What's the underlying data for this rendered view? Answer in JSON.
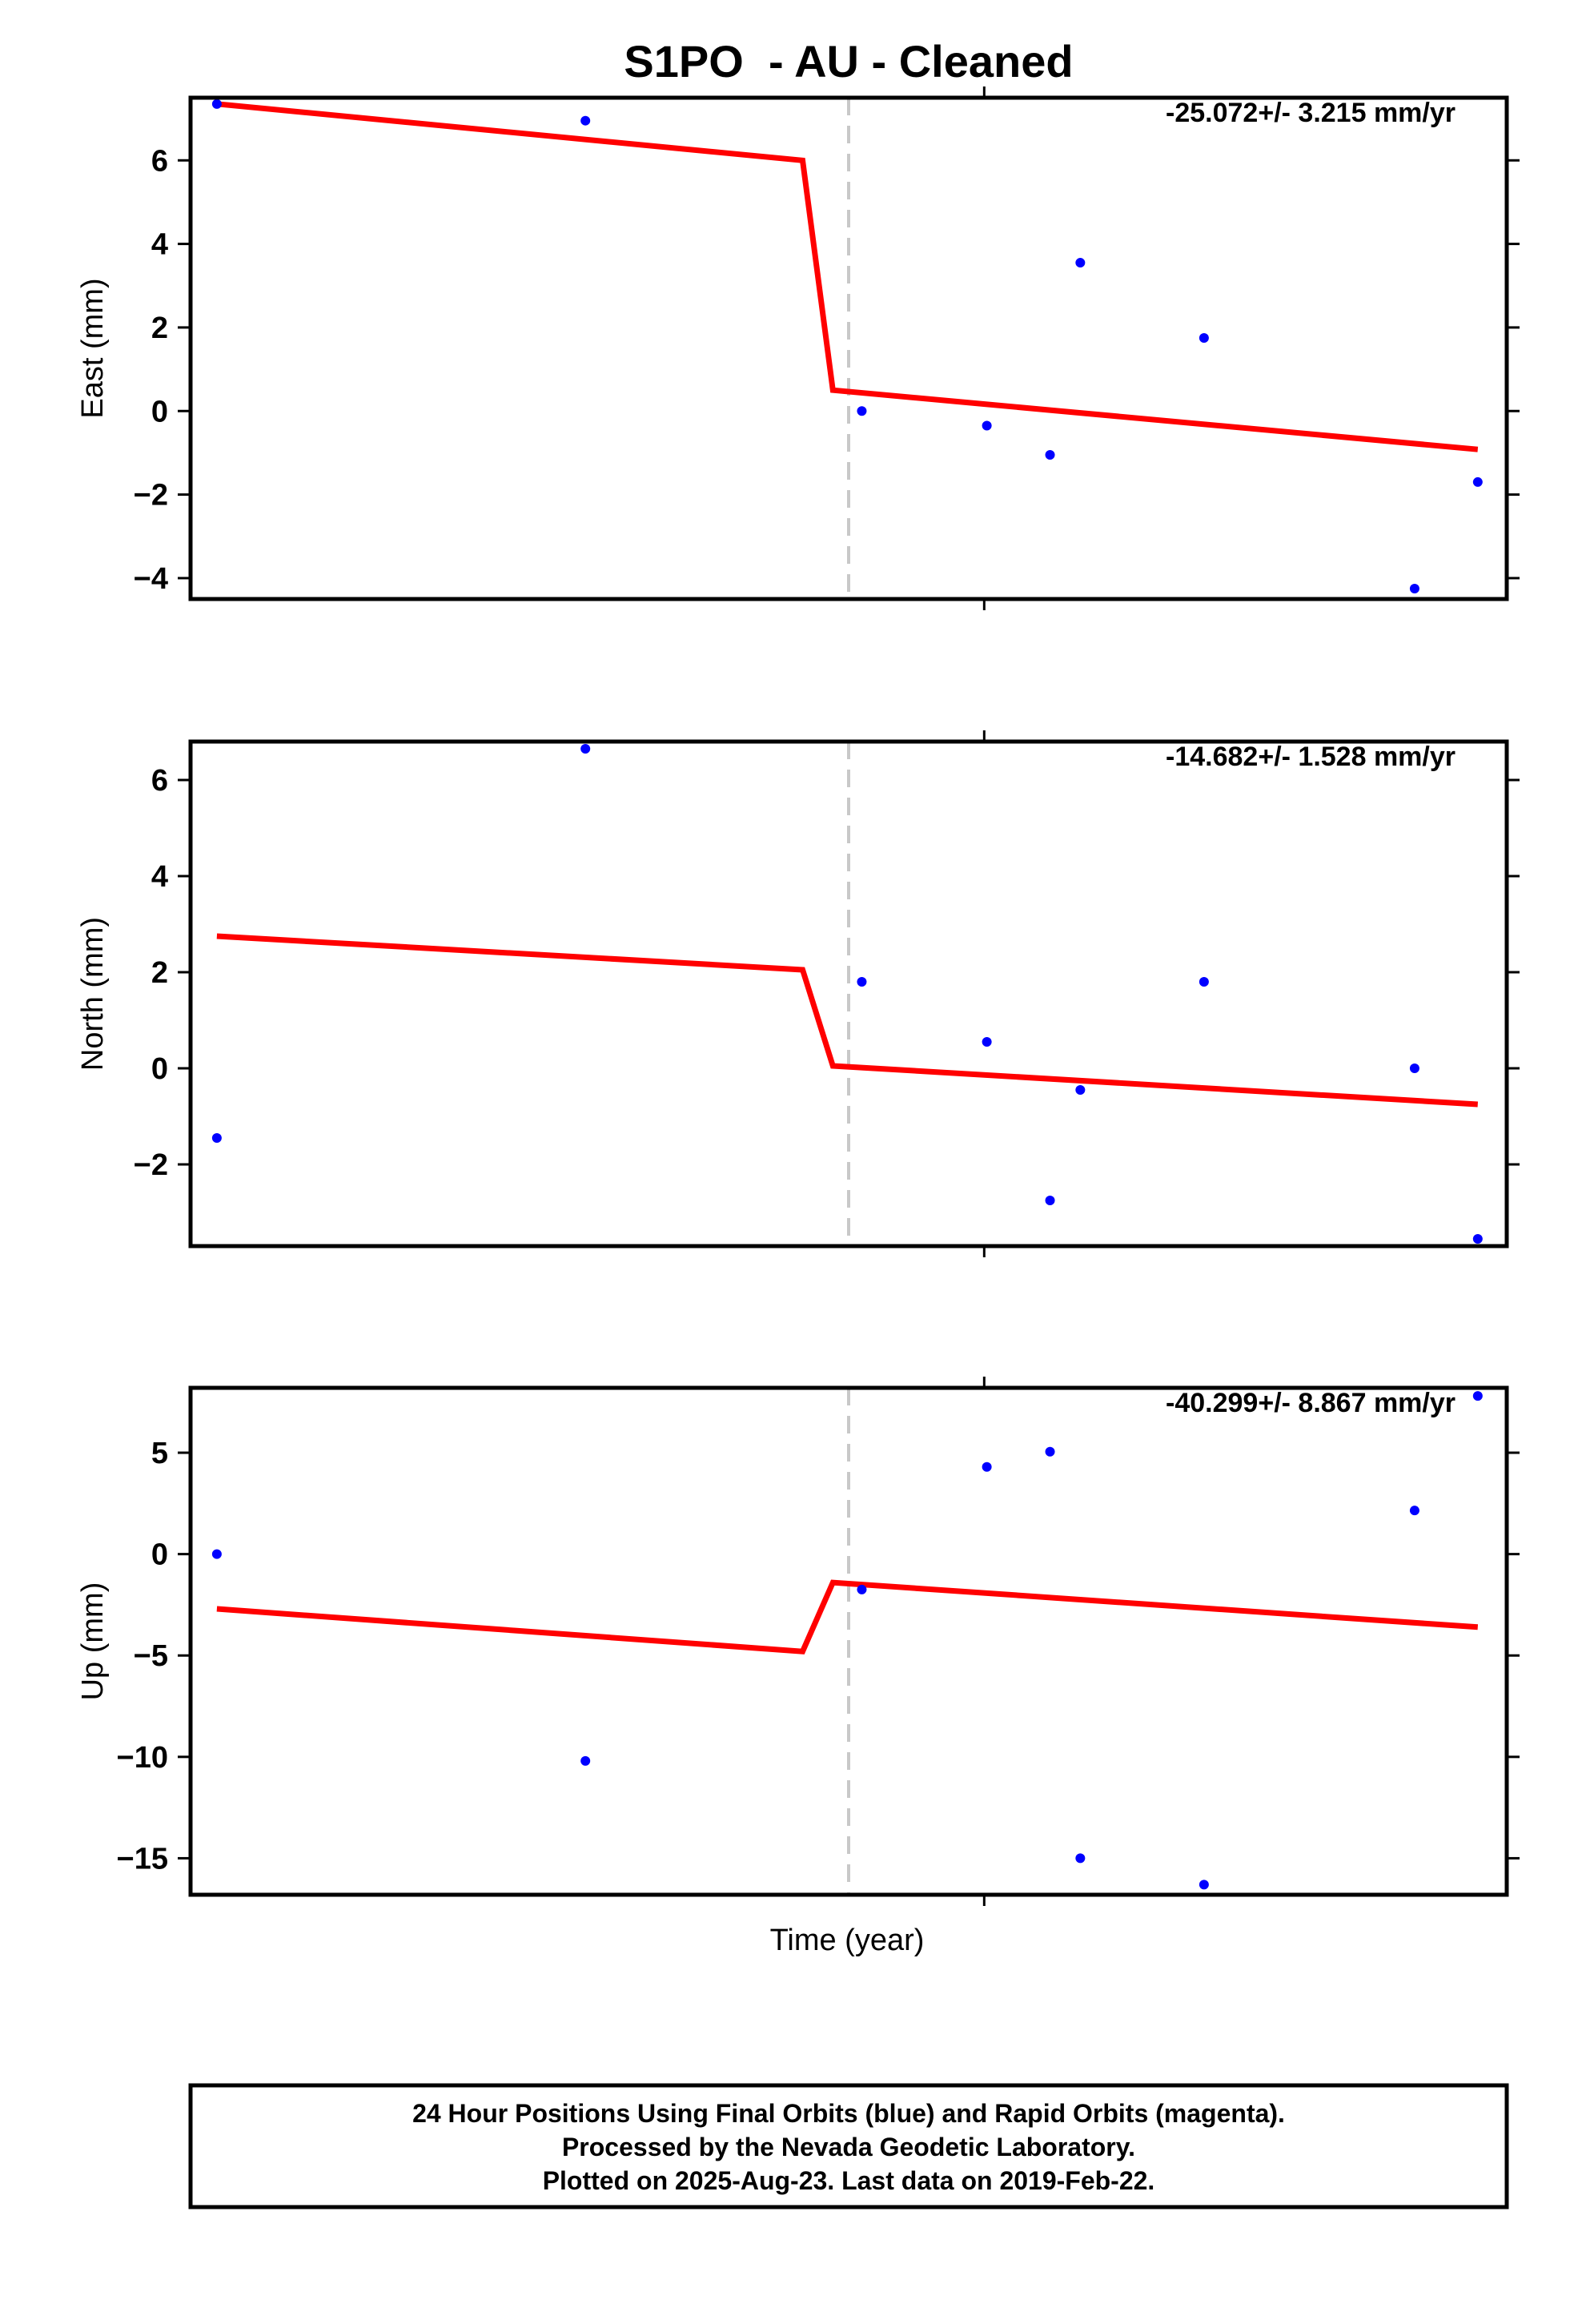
{
  "title": "S1PO  - AU - Cleaned",
  "xlabel": "Time (year)",
  "footer": {
    "line1": "24 Hour Positions Using Final Orbits (blue) and Rapid Orbits (magenta).",
    "line2": "Processed by the Nevada Geodetic Laboratory.",
    "line3": "Plotted on 2025-Aug-23. Last data on 2019-Feb-22."
  },
  "colors": {
    "points": "#0000ff",
    "fit": "#ff0000",
    "break_line": "#c8c8c8"
  },
  "chart_data": [
    {
      "type": "scatter",
      "ylabel": "East (mm)",
      "rate_label": "-25.072+/- 3.215 mm/yr",
      "ylim": [
        -4.5,
        7.5
      ],
      "yticks": [
        6,
        4,
        2,
        0,
        -2,
        -4
      ],
      "ytick_labels": [
        "6",
        "4",
        "2",
        "0",
        "−2",
        "−4"
      ],
      "x": [
        0.02,
        0.3,
        0.51,
        0.605,
        0.653,
        0.676,
        0.77,
        0.93,
        0.978
      ],
      "y": [
        7.35,
        6.95,
        0.0,
        -0.35,
        -1.05,
        3.55,
        1.75,
        -4.25,
        -1.7
      ],
      "fit": {
        "x": [
          0.02,
          0.465,
          0.488,
          0.978
        ],
        "y": [
          7.35,
          6.0,
          0.5,
          -0.92
        ]
      }
    },
    {
      "type": "scatter",
      "ylabel": "North (mm)",
      "rate_label": "-14.682+/- 1.528 mm/yr",
      "ylim": [
        -3.7,
        6.8
      ],
      "yticks": [
        6,
        4,
        2,
        0,
        -2
      ],
      "ytick_labels": [
        "6",
        "4",
        "2",
        "0",
        "−2"
      ],
      "x": [
        0.02,
        0.3,
        0.51,
        0.605,
        0.653,
        0.676,
        0.77,
        0.93,
        0.978
      ],
      "y": [
        -1.45,
        6.65,
        1.8,
        0.55,
        -2.75,
        -0.45,
        1.8,
        0.0,
        -3.55
      ],
      "fit": {
        "x": [
          0.02,
          0.465,
          0.488,
          0.978
        ],
        "y": [
          2.75,
          2.05,
          0.05,
          -0.75
        ]
      }
    },
    {
      "type": "scatter",
      "ylabel": "Up (mm)",
      "rate_label": "-40.299+/- 8.867 mm/yr",
      "ylim": [
        -16.8,
        8.2
      ],
      "yticks": [
        5,
        0,
        -5,
        -10,
        -15
      ],
      "ytick_labels": [
        "5",
        "0",
        "−5",
        "−10",
        "−15"
      ],
      "x": [
        0.02,
        0.3,
        0.51,
        0.605,
        0.653,
        0.676,
        0.77,
        0.93,
        0.978
      ],
      "y": [
        0.0,
        -10.2,
        -1.75,
        4.3,
        5.05,
        -15.0,
        -16.3,
        2.15,
        7.8
      ],
      "fit": {
        "x": [
          0.02,
          0.465,
          0.488,
          0.978
        ],
        "y": [
          -2.7,
          -4.8,
          -1.4,
          -3.6
        ]
      }
    }
  ]
}
